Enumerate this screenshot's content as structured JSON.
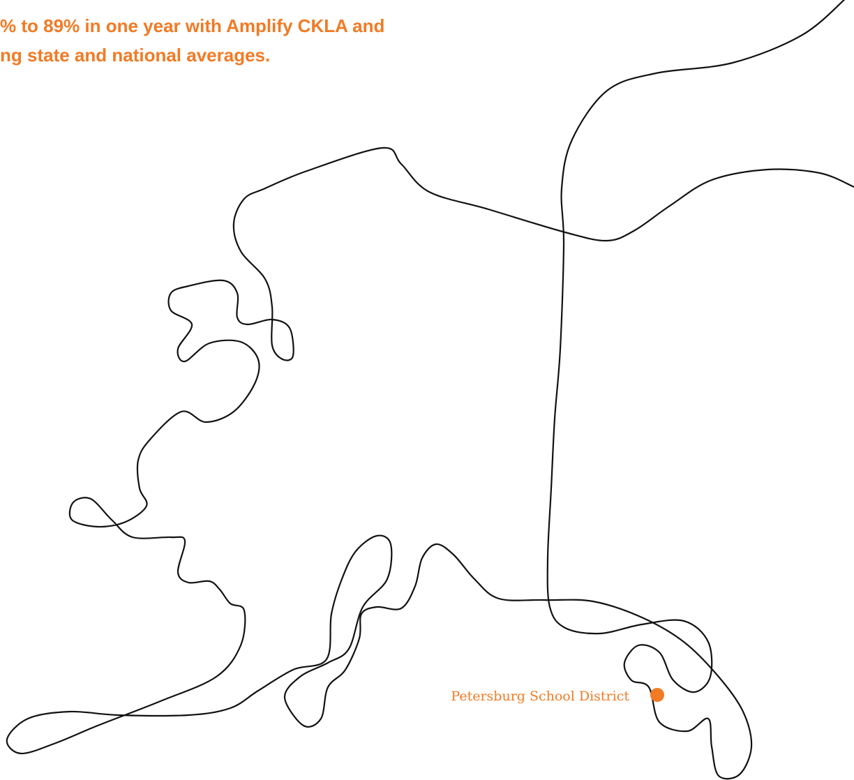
{
  "headline": {
    "lines": [
      "% to 89% in one year with Amplify CKLA and",
      "ng state and national averages."
    ]
  },
  "map": {
    "marker_label": "Petersburg School District"
  }
}
